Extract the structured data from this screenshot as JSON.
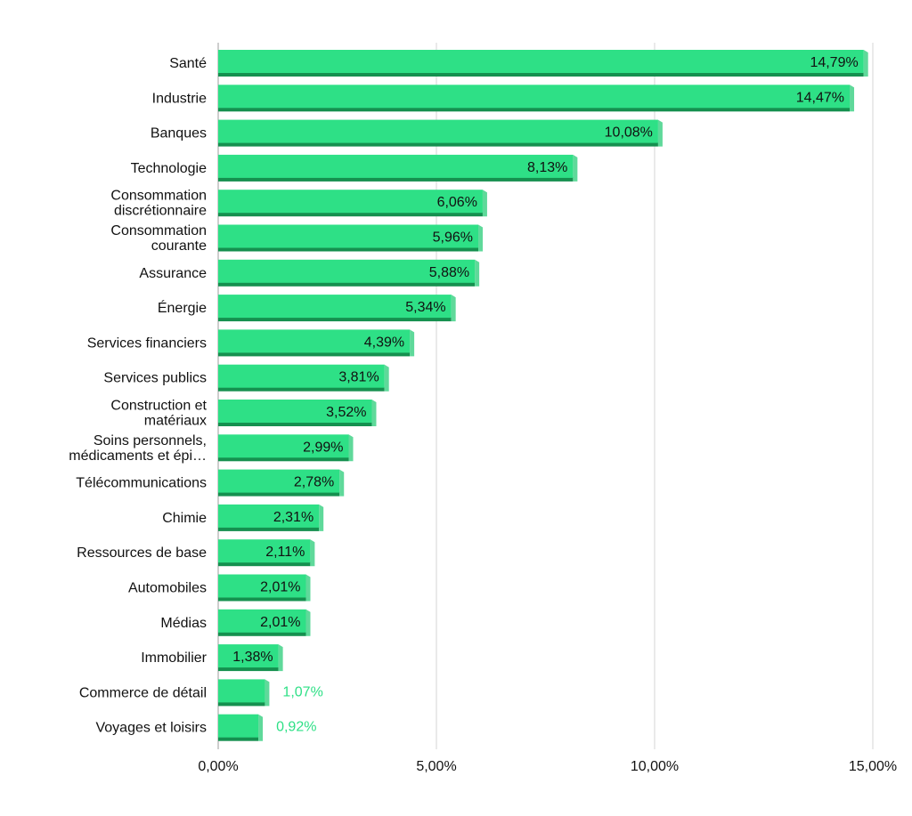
{
  "chart_data": {
    "type": "bar",
    "orientation": "horizontal",
    "categories": [
      "Santé",
      "Industrie",
      "Banques",
      "Technologie",
      "Consommation\ndiscrétionnaire",
      "Consommation\ncourante",
      "Assurance",
      "Énergie",
      "Services financiers",
      "Services publics",
      "Construction et\nmatériaux",
      "Soins personnels,\nmédicaments et épi…",
      "Télécommunications",
      "Chimie",
      "Ressources de base",
      "Automobiles",
      "Médias",
      "Immobilier",
      "Commerce de détail",
      "Voyages et loisirs"
    ],
    "values": [
      14.79,
      14.47,
      10.08,
      8.13,
      6.06,
      5.96,
      5.88,
      5.34,
      4.39,
      3.81,
      3.52,
      2.99,
      2.78,
      2.31,
      2.11,
      2.01,
      2.01,
      1.38,
      1.07,
      0.92
    ],
    "value_labels": [
      "14,79%",
      "14,47%",
      "10,08%",
      "8,13%",
      "6,06%",
      "5,96%",
      "5,88%",
      "5,34%",
      "4,39%",
      "3,81%",
      "3,52%",
      "2,99%",
      "2,78%",
      "2,31%",
      "2,11%",
      "2,01%",
      "2,01%",
      "1,38%",
      "1,07%",
      "0,92%"
    ],
    "xlim": [
      0,
      15
    ],
    "xticks": [
      0,
      5,
      10,
      15
    ],
    "xtick_labels": [
      "0,00%",
      "5,00%",
      "10,00%",
      "15,00%"
    ],
    "title": "",
    "xlabel": "",
    "ylabel": "",
    "grid": true,
    "colors": {
      "bar_face": "#2ee086",
      "bar_shadow": "#15904f",
      "bar_side": "#5fd99a",
      "label_inside": "#111111",
      "label_outside": "#2ee086",
      "grid": "#d6d6d6",
      "axis": "#bdbdbd"
    }
  }
}
